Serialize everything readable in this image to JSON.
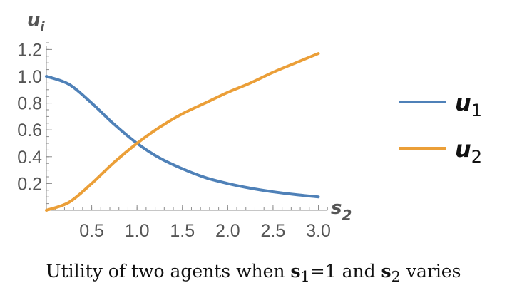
{
  "chart_data": {
    "type": "line",
    "xlabel": {
      "main": "s",
      "sub": "2"
    },
    "ylabel": {
      "main": "u",
      "sub": "i"
    },
    "xlim": [
      0,
      3.1
    ],
    "ylim": [
      0,
      1.25
    ],
    "x_ticks": [
      0.5,
      1.0,
      1.5,
      2.0,
      2.5,
      3.0
    ],
    "x_tick_labels": [
      "0.5",
      "1.0",
      "1.5",
      "2.0",
      "2.5",
      "3.0"
    ],
    "y_ticks": [
      0.2,
      0.4,
      0.6,
      0.8,
      1.0,
      1.2
    ],
    "y_tick_labels": [
      "0.2",
      "0.4",
      "0.6",
      "0.8",
      "1.0",
      "1.2"
    ],
    "x_minor_step": 0.1,
    "y_minor_step": 0.05,
    "grid": false,
    "legend_position": "right",
    "series": [
      {
        "name": "u1",
        "label_main": "u",
        "label_sub": "1",
        "color": "#4f81b8",
        "x": [
          0,
          0.25,
          0.5,
          0.75,
          1.0,
          1.25,
          1.5,
          1.75,
          2.0,
          2.25,
          2.5,
          2.75,
          3.0
        ],
        "y": [
          1.0,
          0.94,
          0.8,
          0.64,
          0.5,
          0.39,
          0.31,
          0.245,
          0.2,
          0.165,
          0.138,
          0.117,
          0.1
        ]
      },
      {
        "name": "u2",
        "label_main": "u",
        "label_sub": "2",
        "color": "#eb9f38",
        "x": [
          0,
          0.25,
          0.5,
          0.75,
          1.0,
          1.25,
          1.5,
          1.75,
          2.0,
          2.25,
          2.5,
          2.75,
          3.0
        ],
        "y": [
          0.0,
          0.06,
          0.2,
          0.36,
          0.5,
          0.62,
          0.72,
          0.8,
          0.88,
          0.95,
          1.03,
          1.1,
          1.17
        ]
      }
    ]
  },
  "caption": {
    "prefix": "Utility of two agents when ",
    "var1": "s",
    "var1_sub": "1",
    "mid": "=1 and ",
    "var2": "s",
    "var2_sub": "2",
    "suffix": " varies"
  }
}
